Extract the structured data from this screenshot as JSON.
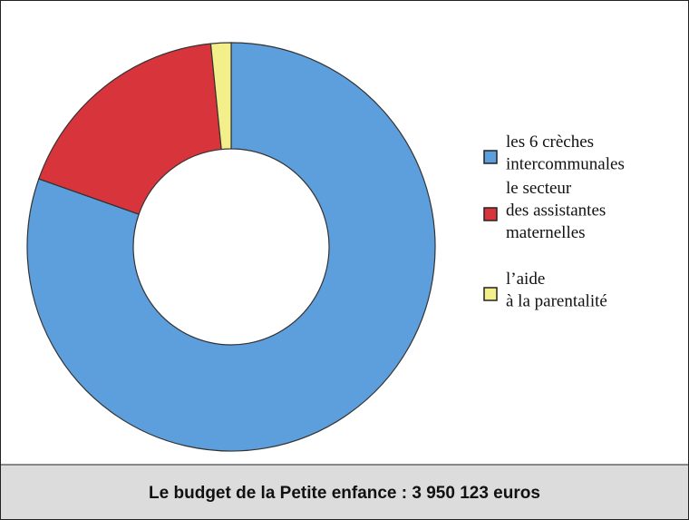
{
  "chart_data": {
    "type": "pie",
    "title": "Le budget de la Petite enfance : 3 950 123 euros",
    "categories": [
      [
        "les 6 crèches",
        "intercommunales"
      ],
      [
        "le secteur",
        "des assistantes",
        "maternelles"
      ],
      [
        "l’aide",
        "à la parentalité"
      ]
    ],
    "values": [
      80.4,
      18,
      1.6
    ],
    "colors": [
      "#5d9fdc",
      "#d8343c",
      "#f3ef8a"
    ],
    "hole": 0.48
  }
}
